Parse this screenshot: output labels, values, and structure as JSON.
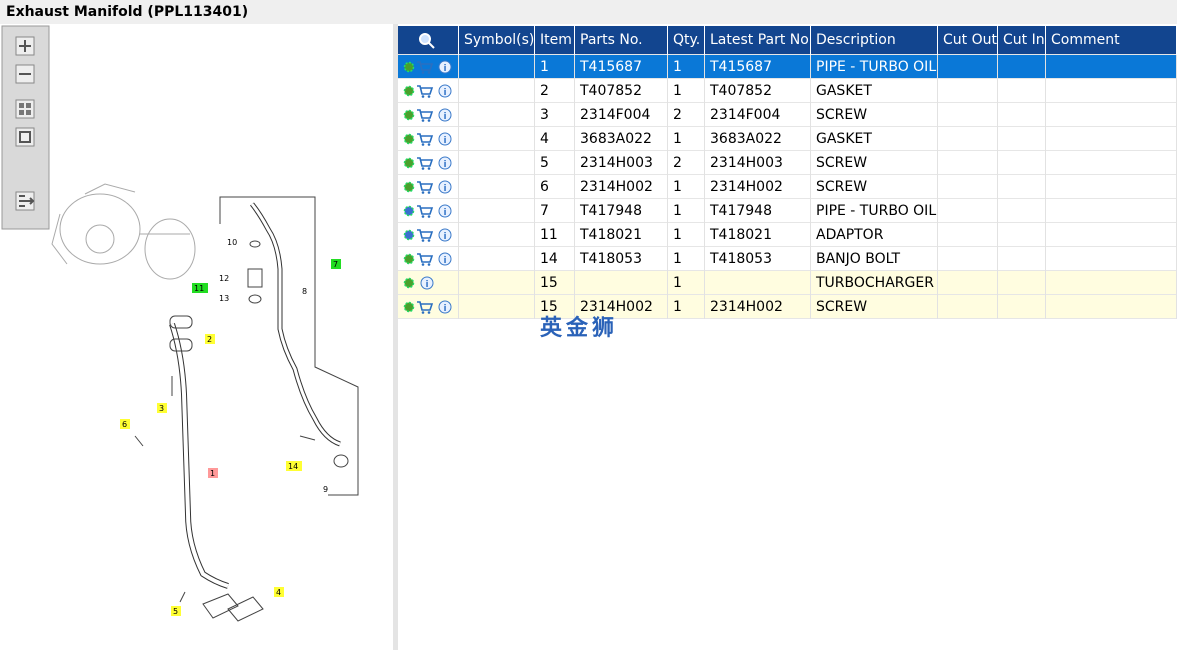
{
  "header": {
    "title": "Exhaust Manifold (PPL113401)"
  },
  "diagram": {
    "callouts": [
      {
        "label": "10"
      },
      {
        "label": "12"
      },
      {
        "label": "13"
      },
      {
        "label": "11",
        "color": "#22dd22"
      },
      {
        "label": "8"
      },
      {
        "label": "7",
        "color": "#22dd22"
      },
      {
        "label": "2",
        "color": "#ffff33"
      },
      {
        "label": "3",
        "color": "#ffff33"
      },
      {
        "label": "1",
        "color": "#ff9999"
      },
      {
        "label": "6",
        "color": "#ffff33"
      },
      {
        "label": "14",
        "color": "#ffff33"
      },
      {
        "label": "9"
      },
      {
        "label": "5",
        "color": "#ffff33"
      },
      {
        "label": "4",
        "color": "#ffff33"
      }
    ]
  },
  "table": {
    "columns": [
      "Symbol(s)",
      "Item",
      "Parts No.",
      "Qty.",
      "Latest Part No.",
      "Description",
      "Cut Out",
      "Cut In",
      "Comment"
    ],
    "rows": [
      [
        null,
        "1",
        "T415687",
        "1",
        "T415687",
        "PIPE - TURBO OIL I",
        null,
        null,
        null
      ],
      [
        null,
        "2",
        "T407852",
        "1",
        "T407852",
        "GASKET",
        null,
        null,
        null
      ],
      [
        null,
        "3",
        "2314F004",
        "2",
        "2314F004",
        "SCREW",
        null,
        null,
        null
      ],
      [
        null,
        "4",
        "3683A022",
        "1",
        "3683A022",
        "GASKET",
        null,
        null,
        null
      ],
      [
        null,
        "5",
        "2314H003",
        "2",
        "2314H003",
        "SCREW",
        null,
        null,
        null
      ],
      [
        null,
        "6",
        "2314H002",
        "1",
        "2314H002",
        "SCREW",
        null,
        null,
        null
      ],
      [
        null,
        "7",
        "T417948",
        "1",
        "T417948",
        "PIPE - TURBO OIL I",
        null,
        null,
        null
      ],
      [
        null,
        "11",
        "T418021",
        "1",
        "T418021",
        "ADAPTOR",
        null,
        null,
        null
      ],
      [
        null,
        "14",
        "T418053",
        "1",
        "T418053",
        "BANJO BOLT",
        null,
        null,
        null
      ],
      [
        null,
        "15",
        null,
        "1",
        null,
        "TURBOCHARGER",
        null,
        null,
        null
      ],
      [
        null,
        "15",
        "2314H002",
        "1",
        "2314H002",
        "SCREW",
        null,
        null,
        null
      ]
    ]
  },
  "watermark": "英金狮"
}
